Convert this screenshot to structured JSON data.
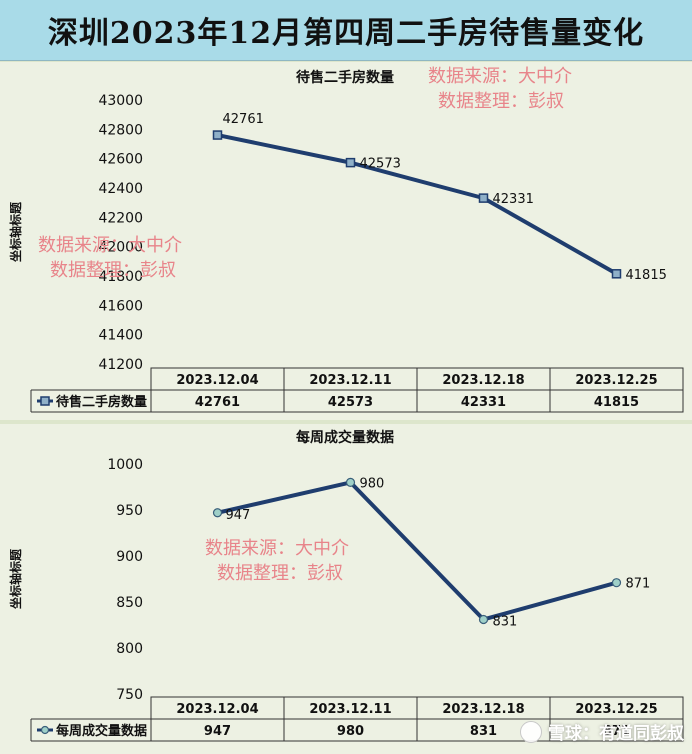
{
  "page_title": "深圳2023年12月第四周二手房待售量变化",
  "colors": {
    "header_bg": "#a9dbe8",
    "line": "#1f3d6e",
    "watermark": "#e8848a",
    "panel_bg": "#edf1e3"
  },
  "watermarks": {
    "line1": "数据来源：大中介",
    "line2": "数据整理：彭叔",
    "logo_text": "雪球：有道同彭叔",
    "logo_icon": "snowball-icon"
  },
  "chart_data": [
    {
      "type": "line",
      "title": "待售二手房数量",
      "ylabel": "坐标轴标题",
      "categories": [
        "2023.12.04",
        "2023.12.11",
        "2023.12.18",
        "2023.12.25"
      ],
      "series": [
        {
          "name": "待售二手房数量",
          "values": [
            42761,
            42573,
            42331,
            41815
          ],
          "marker": "square"
        }
      ],
      "ylim": [
        41200,
        43000
      ],
      "yticks": [
        "43000",
        "42800",
        "42600",
        "42400",
        "42200",
        "42000",
        "41800",
        "41600",
        "41400",
        "41200"
      ],
      "data_labels": [
        "42761",
        "42573",
        "42331",
        "41815"
      ],
      "grid": false,
      "legend": "data-table"
    },
    {
      "type": "line",
      "title": "每周成交量数据",
      "ylabel": "坐标轴标题",
      "categories": [
        "2023.12.04",
        "2023.12.11",
        "2023.12.18",
        "2023.12.25"
      ],
      "series": [
        {
          "name": "每周成交量数据",
          "values": [
            947,
            980,
            831,
            871
          ],
          "marker": "circle"
        }
      ],
      "ylim": [
        750,
        1000
      ],
      "yticks": [
        "1000",
        "950",
        "900",
        "850",
        "800",
        "750"
      ],
      "data_labels": [
        "947",
        "980",
        "831",
        "871"
      ],
      "grid": false,
      "legend": "data-table"
    }
  ]
}
